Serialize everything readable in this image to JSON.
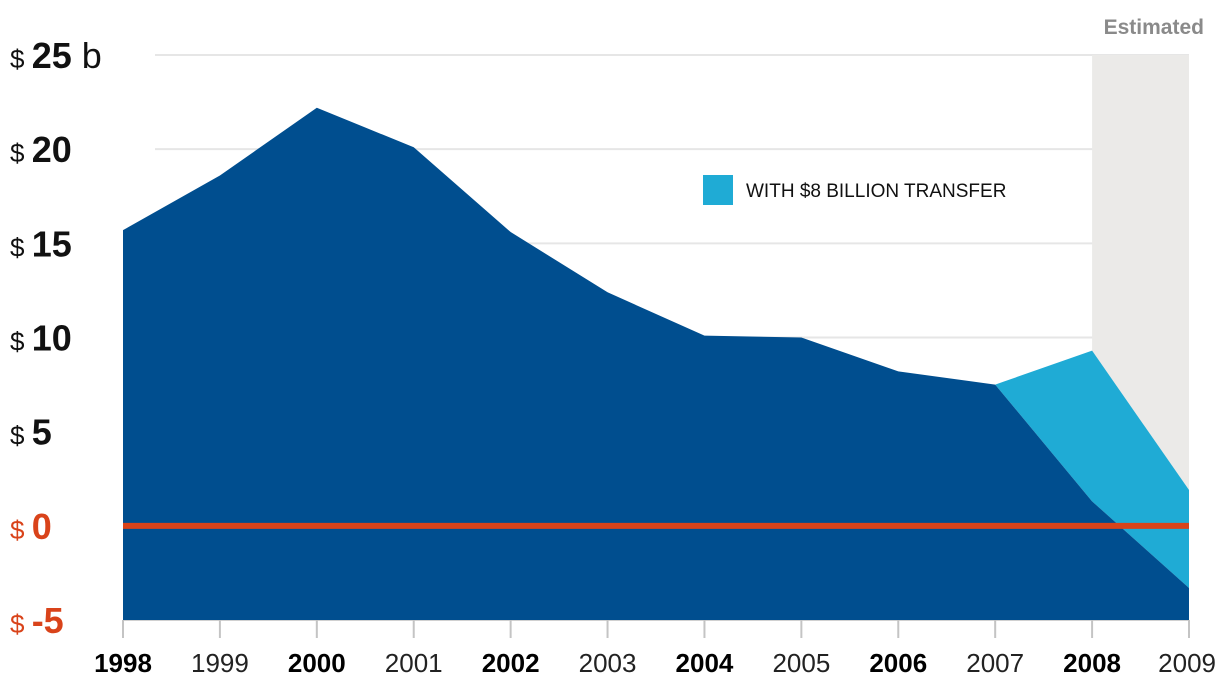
{
  "chart_data": {
    "type": "area",
    "x": [
      "1998",
      "1999",
      "2000",
      "2001",
      "2002",
      "2003",
      "2004",
      "2005",
      "2006",
      "2007",
      "2008",
      "2009"
    ],
    "bold_x_labels": [
      "1998",
      "2000",
      "2002",
      "2004",
      "2006",
      "2008"
    ],
    "ylim": [
      -5,
      25
    ],
    "y_ticks": [
      {
        "value": 25,
        "currency": "$",
        "number": "25",
        "unit": "b"
      },
      {
        "value": 20,
        "currency": "$",
        "number": "20",
        "unit": ""
      },
      {
        "value": 15,
        "currency": "$",
        "number": "15",
        "unit": ""
      },
      {
        "value": 10,
        "currency": "$",
        "number": "10",
        "unit": ""
      },
      {
        "value": 5,
        "currency": "$",
        "number": "5",
        "unit": ""
      },
      {
        "value": 0,
        "currency": "$",
        "number": "0",
        "unit": ""
      },
      {
        "value": -5,
        "currency": "$",
        "number": "-5",
        "unit": ""
      }
    ],
    "series": [
      {
        "values": [
          15.7,
          18.6,
          22.2,
          20.1,
          15.6,
          12.4,
          10.1,
          10.0,
          8.2,
          7.5,
          1.3,
          -3.3
        ],
        "color": "#004e8f"
      },
      {
        "name": "WITH $8 BILLION TRANSFER",
        "values": [
          null,
          null,
          null,
          null,
          null,
          null,
          null,
          null,
          null,
          7.5,
          9.3,
          1.9
        ],
        "color": "#1fabd5"
      }
    ],
    "zero_line_color": "#d9431a",
    "negative_label_color": "#d9431a",
    "estimated_region": {
      "label": "Estimated",
      "from": "2008",
      "to": "2009",
      "color": "#ebeae8"
    },
    "legend": {
      "label": "WITH $8 BILLION TRANSFER",
      "placement": "top-right",
      "color": "#1fabd5"
    },
    "grid": true
  }
}
